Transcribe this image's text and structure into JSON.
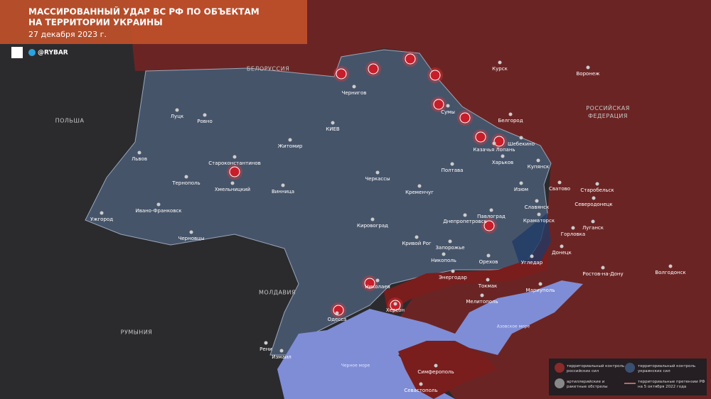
{
  "header": {
    "title_lines": [
      "МАССИРОВАННЫЙ УДАР ВС РФ ПО ОБЪЕКТАМ",
      "НА ТЕРРИТОРИИ УКРАИНЫ"
    ],
    "date": "27 декабря 2023 г.",
    "brand": "@RYBAR"
  },
  "countries": [
    "БЕЛОРУССИЯ",
    "ПОЛЬША",
    "РОССИЙСКАЯ ФЕДЕРАЦИЯ",
    "МОЛДАВИЯ",
    "РУМЫНИЯ"
  ],
  "seas": [
    "Азовское море",
    "Черное море"
  ],
  "cities": [
    "Курск",
    "Воронеж",
    "Чернигов",
    "Сумы",
    "Белгород",
    "Шебекино",
    "Казачья Лопань",
    "КИЕВ",
    "Луцк",
    "Ровно",
    "Житомир",
    "Львов",
    "Староконстантинов",
    "Тернополь",
    "Хмельницкий",
    "Винница",
    "Черкассы",
    "Полтава",
    "Харьков",
    "Купянск",
    "Сватово",
    "Старобельск",
    "Изюм",
    "Северодонецк",
    "Славянск",
    "Кременчуг",
    "Ивано-Франковск",
    "Ужгород",
    "Павлоград",
    "Краматорск",
    "Горловка",
    "Луганск",
    "Кировоград",
    "Днепропетровск",
    "Черновцы",
    "Донецк",
    "Кривой Рог",
    "Запорожье",
    "Угледар",
    "Ростов-на-Дону",
    "Волгодонск",
    "Никополь",
    "Орехов",
    "Энергодар",
    "Николаев",
    "Токмак",
    "Мариуполь",
    "Мелитополь",
    "Херсон",
    "Одесса",
    "Рени",
    "Измаил",
    "Симферополь",
    "Севастополь"
  ],
  "legend": [
    "территориальный контроль российских сил",
    "территориальный контроль украинских сил",
    "артиллерийские и ракетные обстрелы",
    "территориальные претензии РФ на 5 октября 2022 года"
  ]
}
